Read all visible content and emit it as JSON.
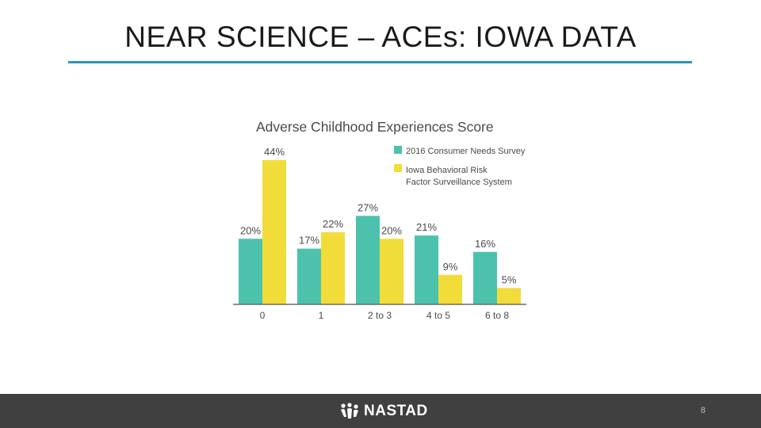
{
  "slide": {
    "title": "NEAR SCIENCE – ACEs: IOWA DATA",
    "page_number": "8",
    "brand": "NASTAD",
    "accent_color": "#2a97b3",
    "footer_color": "#404040"
  },
  "chart_data": {
    "type": "bar",
    "title": "Adverse Childhood Experiences Score",
    "categories": [
      "0",
      "1",
      "2 to 3",
      "4 to 5",
      "6 to 8"
    ],
    "series": [
      {
        "name": "2016 Consumer Needs Survey",
        "color": "#4cc2ad",
        "values": [
          20,
          17,
          27,
          21,
          16
        ],
        "labels": [
          "20%",
          "17%",
          "27%",
          "21%",
          "16%"
        ]
      },
      {
        "name": "Iowa Behavioral Risk Factor Surveillance System",
        "legend_lines": [
          "Iowa Behavioral Risk",
          "Factor Surveillance System"
        ],
        "color": "#f2dc3a",
        "values": [
          44,
          22,
          20,
          9,
          5
        ],
        "labels": [
          "44%",
          "22%",
          "20%",
          "9%",
          "5%"
        ]
      }
    ],
    "ylim": [
      0,
      44
    ],
    "grid": false,
    "legend_position": "top-right"
  }
}
